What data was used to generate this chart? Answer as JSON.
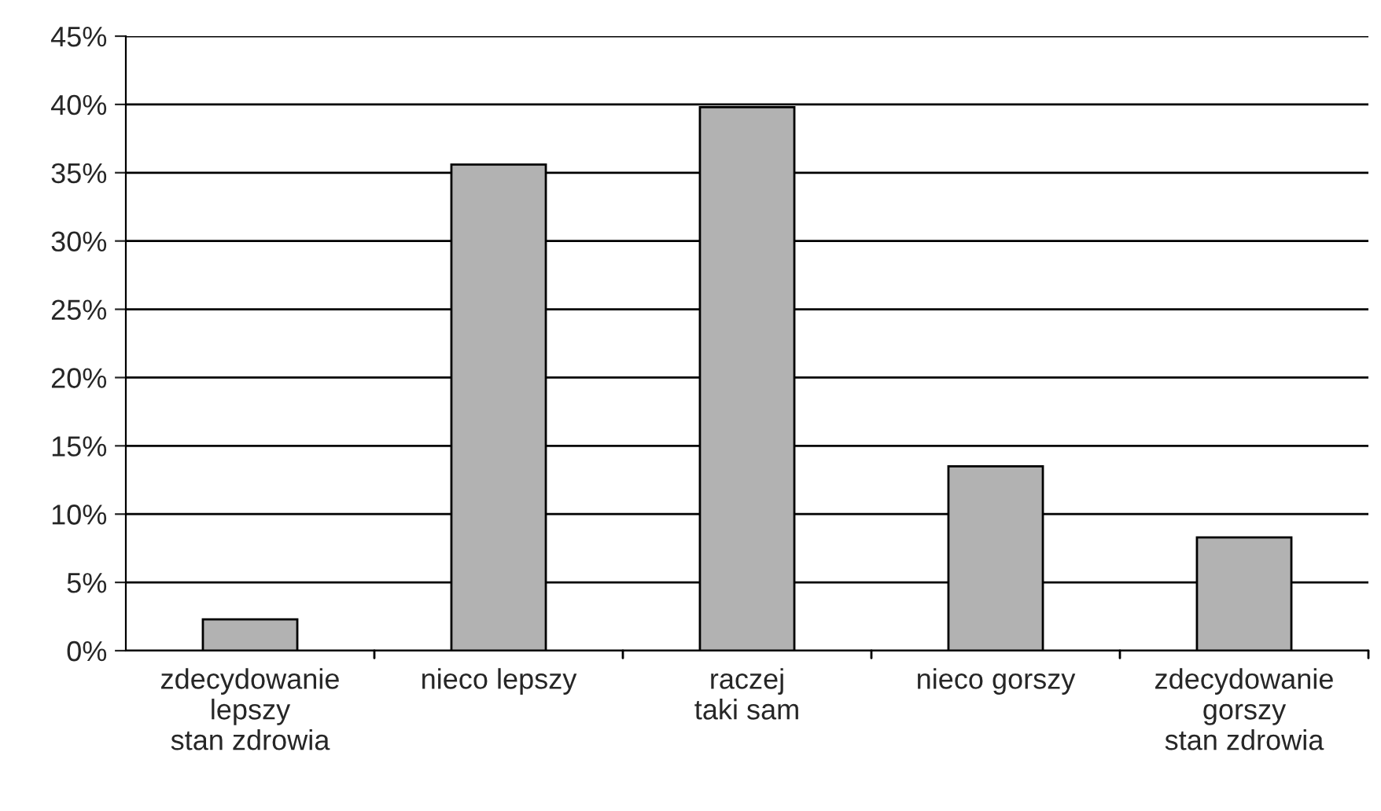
{
  "chart_data": {
    "type": "bar",
    "categories": [
      "zdecydowanie\nlepszy\nstan zdrowia",
      "nieco lepszy",
      "raczej\ntaki sam",
      "nieco gorszy",
      "zdecydowanie\ngorszy\nstan zdrowia"
    ],
    "values": [
      2.3,
      35.6,
      39.8,
      13.5,
      8.3
    ],
    "color": "#b2b2b2",
    "ylim": [
      0,
      45
    ],
    "yticks": [
      {
        "value": 0,
        "label": "0%"
      },
      {
        "value": 5,
        "label": "5%"
      },
      {
        "value": 10,
        "label": "10%"
      },
      {
        "value": 15,
        "label": "15%"
      },
      {
        "value": 20,
        "label": "20%"
      },
      {
        "value": 25,
        "label": "25%"
      },
      {
        "value": 30,
        "label": "30%"
      },
      {
        "value": 35,
        "label": "35%"
      },
      {
        "value": 40,
        "label": "40%"
      },
      {
        "value": 45,
        "label": "45%"
      }
    ],
    "grid": "y"
  }
}
